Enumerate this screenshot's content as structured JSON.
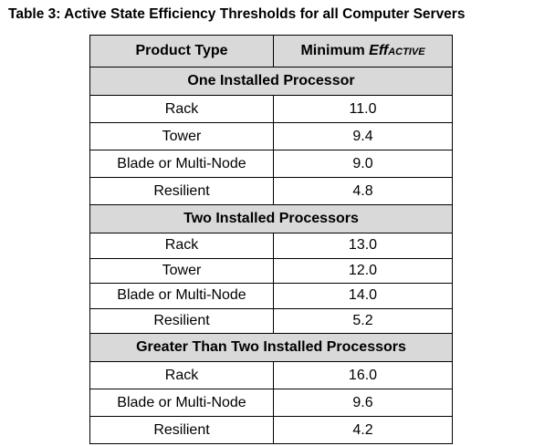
{
  "caption": "Table 3: Active State Efficiency Thresholds for all Computer Servers",
  "table": {
    "headers": {
      "product_type": "Product Type",
      "minimum_prefix": "Minimum ",
      "minimum_eff": "Eff",
      "minimum_subscript": "ACTIVE"
    },
    "sections": [
      {
        "title": "One Installed Processor",
        "rows": [
          {
            "product": "Rack",
            "value": "11.0"
          },
          {
            "product": "Tower",
            "value": "9.4"
          },
          {
            "product": "Blade or Multi-Node",
            "value": "9.0"
          },
          {
            "product": "Resilient",
            "value": "4.8"
          }
        ]
      },
      {
        "title": "Two Installed Processors",
        "rows": [
          {
            "product": "Rack",
            "value": "13.0"
          },
          {
            "product": "Tower",
            "value": "12.0"
          },
          {
            "product": "Blade or Multi-Node",
            "value": "14.0"
          },
          {
            "product": "Resilient",
            "value": "5.2"
          }
        ]
      },
      {
        "title": "Greater Than Two Installed Processors",
        "rows": [
          {
            "product": "Rack",
            "value": "16.0"
          },
          {
            "product": "Blade or Multi-Node",
            "value": "9.6"
          },
          {
            "product": "Resilient",
            "value": "4.2"
          }
        ]
      }
    ]
  }
}
